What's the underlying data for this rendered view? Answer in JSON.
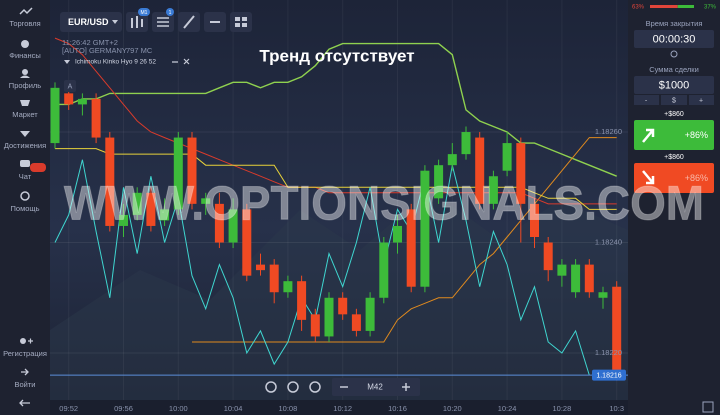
{
  "sidebar": {
    "items": [
      "Торговля",
      "Финансы",
      "Профиль",
      "Маркет",
      "Достижения",
      "Чат",
      "Помощь"
    ],
    "bottom": [
      "Регистрация",
      "Войти"
    ]
  },
  "toolbar": {
    "pair": "EUR/USD",
    "badges": [
      "M1",
      "1"
    ]
  },
  "chart_info": {
    "time": "11:26:42 GMT+2",
    "market": "[AUTO] GERMANY",
    "volume": "797 MC",
    "indicator": "Ichimoku Kinko Hyo 9 26 52",
    "marker": "A"
  },
  "overlay_title": "Тренд отсутствует",
  "watermark": "WWW.OPTIONSIGNALS.COM",
  "zoom": {
    "timeframe": "M42"
  },
  "panel": {
    "sentiment": {
      "values": [
        63,
        37
      ],
      "value_labels": [
        "63%",
        "37%"
      ],
      "colors": [
        "#e0453a",
        "#3dbb3a"
      ]
    },
    "close_time_label": "Время закрытия",
    "close_time": "00:00:30",
    "amount_label": "Сумма сделки",
    "amount": "$1000",
    "amount_buttons": [
      "-",
      "$",
      "+"
    ],
    "up_payout": "+$860",
    "up_percent": "+86%",
    "down_payout": "+$860",
    "down_percent": "+86%"
  },
  "chart_data": {
    "type": "candlestick",
    "categories": [
      null,
      "09:52",
      null,
      null,
      null,
      "09:56",
      null,
      null,
      null,
      "10:00",
      null,
      null,
      null,
      "10:04",
      null,
      null,
      null,
      "10:08",
      null,
      null,
      null,
      "10:12",
      null,
      null,
      null,
      "10:16",
      null,
      null,
      null,
      "10:20",
      null,
      null,
      null,
      "10:24",
      null,
      null,
      null,
      "10:28",
      null,
      null,
      null,
      "10:3"
    ],
    "open": [
      1.18258,
      1.18267,
      1.18265,
      1.18266,
      1.18259,
      1.18243,
      1.18245,
      1.18249,
      1.18244,
      1.18246,
      1.18259,
      1.18247,
      1.18247,
      1.1824,
      1.18246,
      1.18236,
      1.18236,
      1.18231,
      1.18233,
      1.18227,
      1.18223,
      1.1823,
      1.18227,
      1.18224,
      1.1823,
      1.1824,
      1.18246,
      1.18232,
      1.18248,
      1.18254,
      1.18256,
      1.18259,
      1.18247,
      1.18253,
      1.18258,
      1.18247,
      1.1824,
      1.18234,
      1.18231,
      1.18236,
      1.1823,
      1.18232
    ],
    "high": [
      1.18269,
      1.18268,
      1.18267,
      1.18267,
      1.1826,
      1.18247,
      1.1825,
      1.1825,
      1.18248,
      1.1826,
      1.1826,
      1.18249,
      1.18249,
      1.18248,
      1.18247,
      1.18238,
      1.18237,
      1.18234,
      1.18234,
      1.18228,
      1.18231,
      1.18231,
      1.18228,
      1.18231,
      1.18241,
      1.18245,
      1.18247,
      1.18254,
      1.18255,
      1.18258,
      1.18261,
      1.1826,
      1.18253,
      1.1826,
      1.18259,
      1.18248,
      1.18241,
      1.18237,
      1.18237,
      1.18237,
      1.18232,
      1.18233
    ],
    "low": [
      1.18257,
      1.18264,
      1.18263,
      1.18258,
      1.18242,
      1.18241,
      1.18244,
      1.18242,
      1.18243,
      1.18245,
      1.18246,
      1.18245,
      1.18239,
      1.18239,
      1.18233,
      1.18234,
      1.18229,
      1.1823,
      1.18224,
      1.18222,
      1.18222,
      1.18226,
      1.18223,
      1.18223,
      1.18229,
      1.18238,
      1.18231,
      1.18231,
      1.18247,
      1.18253,
      1.18255,
      1.18246,
      1.18246,
      1.18252,
      1.1824,
      1.18239,
      1.18233,
      1.18232,
      1.1823,
      1.1823,
      1.18228,
      1.18215
    ],
    "close": [
      1.18268,
      1.18265,
      1.18266,
      1.18259,
      1.18243,
      1.18245,
      1.18249,
      1.18243,
      1.18246,
      1.18259,
      1.18247,
      1.18248,
      1.1824,
      1.18246,
      1.18234,
      1.18235,
      1.18231,
      1.18233,
      1.18226,
      1.18223,
      1.1823,
      1.18227,
      1.18224,
      1.1823,
      1.1824,
      1.18243,
      1.18232,
      1.18253,
      1.18254,
      1.18256,
      1.1826,
      1.18247,
      1.18252,
      1.18258,
      1.18247,
      1.18241,
      1.18235,
      1.18236,
      1.18236,
      1.18231,
      1.18231,
      1.18216
    ],
    "up_color": "#3dbb3a",
    "down_color": "#f04a23",
    "lines": [
      {
        "color": "#8fd14f",
        "values": [
          1.18265,
          1.18265,
          1.18266,
          1.18266,
          1.18267,
          1.18267,
          1.18267,
          1.18267,
          1.18267,
          1.18267,
          1.18267,
          1.18267,
          1.18268,
          1.18269,
          1.18269,
          1.18268,
          1.18269,
          1.18269,
          1.1827,
          1.18272,
          1.18275,
          1.18276,
          1.18276,
          1.18276,
          1.18276,
          1.18276,
          1.18276,
          1.18276,
          1.18276,
          1.18274,
          1.18264,
          1.18262,
          1.18261,
          1.1826,
          1.18258,
          1.18258,
          1.18257,
          1.18256,
          1.18255,
          1.18254,
          1.18253,
          1.18252
        ]
      },
      {
        "color": "#e08a1e",
        "values": [
          null,
          null,
          null,
          null,
          null,
          null,
          null,
          null,
          null,
          null,
          1.18222,
          1.18222,
          1.18222,
          1.18222,
          1.18222,
          1.18222,
          1.18222,
          1.18222,
          1.18222,
          1.18222,
          1.18222,
          1.18222,
          1.18222,
          1.18222,
          1.18222,
          1.18226,
          1.18228,
          1.18229,
          1.1823,
          1.1823,
          1.18233,
          1.18236,
          1.18238,
          1.18241,
          1.18244,
          1.18247,
          1.1825,
          1.18253,
          1.18256,
          1.18259,
          1.18259,
          1.18259
        ]
      },
      {
        "color": "#d93b2b",
        "values": [
          1.18277,
          1.18276,
          1.18274,
          1.18271,
          1.18268,
          1.18265,
          1.18262,
          1.1826,
          1.18259,
          1.18258,
          1.18257,
          1.18256,
          1.18255,
          1.18254,
          1.18253,
          1.18252,
          1.18251,
          1.1825,
          1.1825,
          1.1825,
          1.18249,
          1.18249,
          1.18249,
          1.18249,
          1.18249,
          1.18249,
          1.18249,
          1.18249,
          1.18249,
          1.18249,
          1.18249,
          1.18249,
          1.18249,
          1.18249,
          1.18249,
          1.18248,
          1.18247,
          1.18247,
          1.18247,
          1.18247,
          1.18247,
          1.18247
        ]
      },
      {
        "color": "#e8d23a",
        "values": [
          1.18257,
          1.18257,
          1.18257,
          1.18257,
          1.18256,
          1.18256,
          1.18256,
          1.18256,
          1.18256,
          1.18256,
          1.18256,
          1.18254,
          1.18254,
          1.18254,
          1.18254,
          1.18254,
          1.18254,
          1.1825,
          1.1825,
          1.1825,
          1.1825,
          1.1825,
          1.1825,
          1.1825,
          1.1825,
          1.1825,
          1.1825,
          1.1825,
          1.1825,
          1.1825,
          1.1825,
          1.1825,
          1.1825,
          1.1825,
          1.1825,
          1.18249,
          1.18248,
          1.18248,
          1.18248,
          1.18246,
          1.18246,
          1.18246
        ]
      },
      {
        "color": "#3fd6d0",
        "values": [
          1.1824,
          1.18245,
          1.18255,
          1.18242,
          1.1823,
          1.1825,
          1.18238,
          1.18252,
          1.1824,
          1.18248,
          1.18234,
          1.18228,
          1.18236,
          1.1823,
          1.1822,
          1.18224,
          1.18218,
          1.18222,
          1.1823,
          1.18226,
          1.18238,
          1.18232,
          1.1824,
          1.1825,
          1.18236,
          1.18246,
          1.18242,
          1.18252,
          1.1824,
          1.18254,
          1.18244,
          1.18232,
          1.18242,
          1.18236,
          1.18226,
          1.18232,
          1.18222,
          1.1822,
          1.18224,
          1.18216,
          null,
          null
        ]
      }
    ],
    "ylim": [
      1.18212,
      1.18278
    ],
    "yticks": [
      {
        "value": 1.1826,
        "label": "1.18260"
      },
      {
        "value": 1.1824,
        "label": "1.18240"
      },
      {
        "value": 1.1822,
        "label": "1.18220"
      }
    ],
    "current_price": 1.18216,
    "grid": true
  }
}
